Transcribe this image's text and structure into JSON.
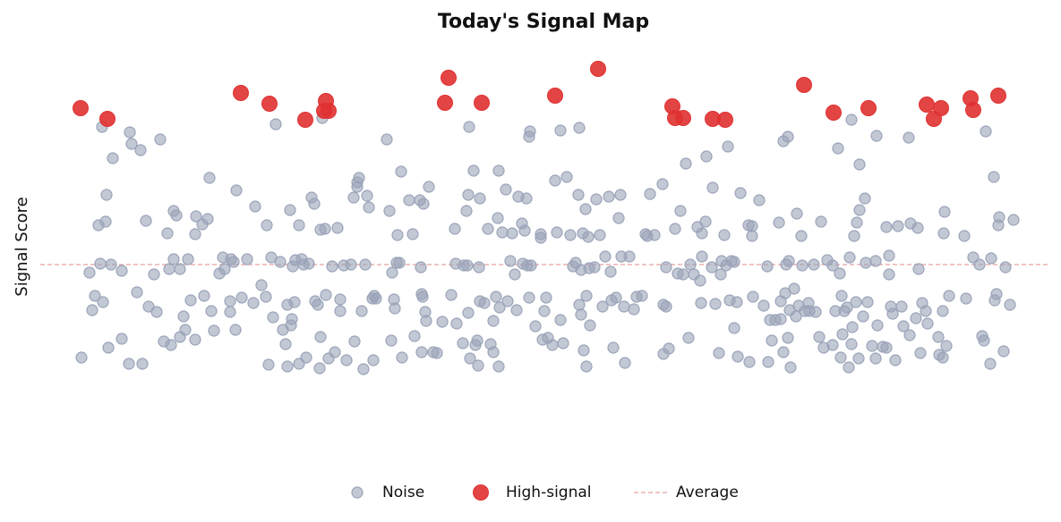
{
  "chart_data": {
    "type": "scatter",
    "title": "Today's Signal Map",
    "y_label": "Signal Score",
    "xlim": [
      0,
      1100
    ],
    "ylim": [
      -204,
      256
    ],
    "legend_position": "bottom",
    "reference_line": {
      "name": "Average",
      "value": 0,
      "color": "#e8a0a0"
    },
    "series": [
      {
        "name": "Noise",
        "color": "#9aa3b8",
        "x": [
          21,
          30,
          36,
          33,
          40,
          44,
          49,
          48,
          42,
          54,
          45,
          51,
          56,
          66,
          66,
          74,
          75,
          77,
          87,
          83,
          89,
          96,
          93,
          102,
          105,
          109,
          113,
          117,
          119,
          121,
          124,
          124,
          131,
          127,
          135,
          137,
          131,
          140,
          143,
          148,
          149,
          148,
          156,
          158,
          162,
          164,
          166,
          169,
          175,
          179,
          181,
          187,
          187,
          188,
          191,
          193,
          194,
          200,
          206,
          215,
          213,
          222,
          227,
          228,
          230,
          233,
          235,
          238,
          243,
          246,
          251,
          251,
          249,
          254,
          255,
          257,
          256,
          259,
          260,
          264,
          264,
          267,
          269,
          272,
          275,
          278,
          281,
          282,
          285,
          288,
          287,
          288,
          293,
          294,
          290,
          297,
          301,
          304,
          307,
          310,
          310,
          314,
          317,
          322,
          325,
          326,
          329,
          331,
          329,
          334,
          336,
          338,
          340,
          342,
          346,
          347,
          348,
          350,
          362,
          365,
          367,
          368,
          370,
          371,
          373,
          374,
          376,
          378,
          379,
          387,
          391,
          393,
          400,
          399,
          401,
          401,
          403,
          402,
          405,
          406,
          409,
          414,
          418,
          424,
          434,
          438,
          439,
          440,
          447,
          448,
          451,
          452,
          454,
          453,
          453,
          455,
          459,
          461,
          463,
          464,
          466,
          466,
          465,
          471,
          475,
          478,
          481,
          481,
          484,
          487,
          487,
          486,
          488,
          491,
          495,
          497,
          500,
          502,
          505,
          507,
          509,
          513,
          514,
          516,
          518,
          519,
          522,
          521,
          523,
          521,
          528,
          534,
          534,
          536,
          538,
          540,
          542,
          547,
          550,
          552,
          556,
          556,
          559,
          563,
          567,
          570,
          573,
          577,
          576,
          577,
          579,
          579,
          581,
          582,
          584,
          585,
          585,
          587,
          588,
          589,
          594,
          596,
          600,
          603,
          606,
          610,
          612,
          613,
          615,
          618,
          621,
          623,
          624,
          627,
          628,
          633,
          638,
          641,
          647,
          651,
          656,
          653,
          661,
          670,
          671,
          671,
          674,
          674,
          677,
          684,
          687,
          690,
          693,
          696,
          699,
          701,
          705,
          709,
          712,
          713,
          714,
          714,
          719,
          718,
          725,
          726,
          729,
          733,
          735,
          736,
          739,
          741,
          743,
          745,
          747,
          750,
          750,
          754,
          753,
          757,
          766,
          767,
          770,
          771,
          770,
          778,
          783,
          787,
          788,
          790,
          792,
          796,
          800,
          802,
          802,
          805,
          805,
          808,
          807,
          810,
          811,
          810,
          813,
          812,
          817,
          820,
          822,
          819,
          825,
          826,
          829,
          833,
          834,
          839,
          841,
          845,
          847,
          850,
          854,
          860,
          860,
          863,
          866,
          868,
          870,
          871,
          873,
          869,
          876,
          881,
          879,
          878,
          881,
          882,
          884,
          886,
          887,
          890,
          889,
          890,
          894,
          896,
          897,
          899,
          904,
          908,
          909,
          908,
          910,
          916,
          920,
          920,
          923,
          923,
          925,
          927,
          930,
          933,
          937,
          939,
          945,
          947,
          946,
          953,
          955,
          956,
          958,
          960,
          964,
          966,
          978,
          979,
          983,
          984,
          985,
          983,
          987,
          990,
          1007,
          1009,
          1017,
          1024,
          1027,
          1029,
          1031,
          1037,
          1036,
          1040,
          1041,
          1043,
          1045,
          1046,
          1051,
          1053,
          1058,
          1062
        ],
        "values": [
          -104,
          -9,
          -35,
          -51,
          44,
          154,
          78,
          48,
          1,
          0,
          -42,
          -93,
          119,
          -7,
          -83,
          -111,
          148,
          135,
          128,
          -31,
          -111,
          -47,
          49,
          -11,
          -53,
          140,
          -86,
          35,
          -5,
          -90,
          60,
          6,
          -5,
          55,
          -58,
          -73,
          -81,
          6,
          -40,
          -84,
          54,
          34,
          45,
          -35,
          51,
          97,
          -52,
          -74,
          -10,
          8,
          -5,
          -41,
          -53,
          6,
          3,
          -73,
          83,
          -37,
          6,
          65,
          -43,
          -23,
          -36,
          44,
          -112,
          8,
          -59,
          157,
          3,
          -73,
          -45,
          -114,
          -89,
          61,
          -68,
          -2,
          -61,
          -42,
          5,
          44,
          -111,
          6,
          0,
          -104,
          1,
          75,
          68,
          -41,
          -45,
          -81,
          -116,
          39,
          40,
          -34,
          164,
          -105,
          -2,
          -98,
          41,
          -39,
          -52,
          -1,
          -107,
          0,
          75,
          -86,
          92,
          97,
          87,
          -52,
          -117,
          0,
          77,
          64,
          -38,
          -107,
          -35,
          -38,
          140,
          60,
          -85,
          -9,
          -39,
          -49,
          2,
          33,
          2,
          104,
          -104,
          72,
          34,
          -80,
          -3,
          72,
          -33,
          -98,
          68,
          -36,
          -53,
          -63,
          87,
          -98,
          -99,
          -64,
          -34,
          40,
          1,
          -66,
          -88,
          -1,
          60,
          -1,
          154,
          78,
          -54,
          -105,
          105,
          -90,
          -85,
          -113,
          74,
          -41,
          -3,
          -43,
          40,
          -89,
          -98,
          -63,
          -36,
          105,
          -114,
          52,
          -48,
          36,
          84,
          -41,
          4,
          35,
          -11,
          -51,
          76,
          46,
          1,
          38,
          74,
          -1,
          149,
          143,
          -1,
          -37,
          -69,
          34,
          30,
          -84,
          -52,
          -37,
          -82,
          -90,
          94,
          36,
          150,
          -62,
          -88,
          98,
          33,
          -2,
          2,
          153,
          78,
          -45,
          -6,
          -56,
          35,
          -96,
          62,
          -114,
          -35,
          31,
          -4,
          -68,
          -3,
          73,
          33,
          -47,
          9,
          76,
          -8,
          -40,
          -93,
          -37,
          52,
          78,
          9,
          -47,
          -110,
          9,
          -50,
          -36,
          -35,
          34,
          79,
          32,
          33,
          90,
          -45,
          -100,
          -3,
          -47,
          -94,
          40,
          -10,
          60,
          -11,
          113,
          -82,
          0,
          -11,
          42,
          -18,
          -43,
          9,
          35,
          121,
          48,
          -3,
          86,
          -44,
          -99,
          -11,
          4,
          33,
          -1,
          132,
          -40,
          4,
          -71,
          3,
          -103,
          -42,
          80,
          44,
          -109,
          43,
          -36,
          32,
          72,
          -46,
          -2,
          -109,
          -62,
          -85,
          -62,
          47,
          -41,
          -61,
          138,
          -98,
          0,
          -32,
          143,
          4,
          -82,
          -115,
          -51,
          -27,
          57,
          -46,
          -58,
          32,
          -1,
          -52,
          -43,
          -52,
          0,
          -53,
          -81,
          48,
          -93,
          5,
          -90,
          -1,
          -52,
          130,
          -10,
          -35,
          -78,
          -52,
          -104,
          -48,
          162,
          8,
          -115,
          -89,
          -70,
          32,
          -42,
          47,
          112,
          -105,
          61,
          -58,
          74,
          2,
          -42,
          -91,
          -105,
          144,
          4,
          -68,
          -92,
          -93,
          42,
          -11,
          10,
          -47,
          -55,
          -107,
          43,
          -47,
          -69,
          142,
          46,
          -79,
          -60,
          41,
          -5,
          -99,
          -43,
          -52,
          -66,
          -81,
          -101,
          -104,
          35,
          59,
          -52,
          -91,
          -35,
          32,
          -38,
          8,
          0,
          -80,
          -85,
          149,
          7,
          -111,
          98,
          -40,
          -33,
          44,
          53,
          -97,
          -3,
          -45,
          50
        ]
      },
      {
        "name": "High-signal",
        "color": "#e03131",
        "x": [
          20,
          50,
          199,
          231,
          271,
          294,
          292,
          297,
          431,
          427,
          468,
          550,
          598,
          681,
          684,
          693,
          726,
          740,
          828,
          861,
          900,
          965,
          981,
          973,
          1014,
          1017,
          1045
        ],
        "values": [
          175,
          163,
          192,
          180,
          162,
          183,
          172,
          172,
          209,
          181,
          181,
          189,
          219,
          177,
          164,
          164,
          163,
          162,
          201,
          170,
          175,
          179,
          175,
          163,
          186,
          173,
          189
        ]
      }
    ]
  }
}
